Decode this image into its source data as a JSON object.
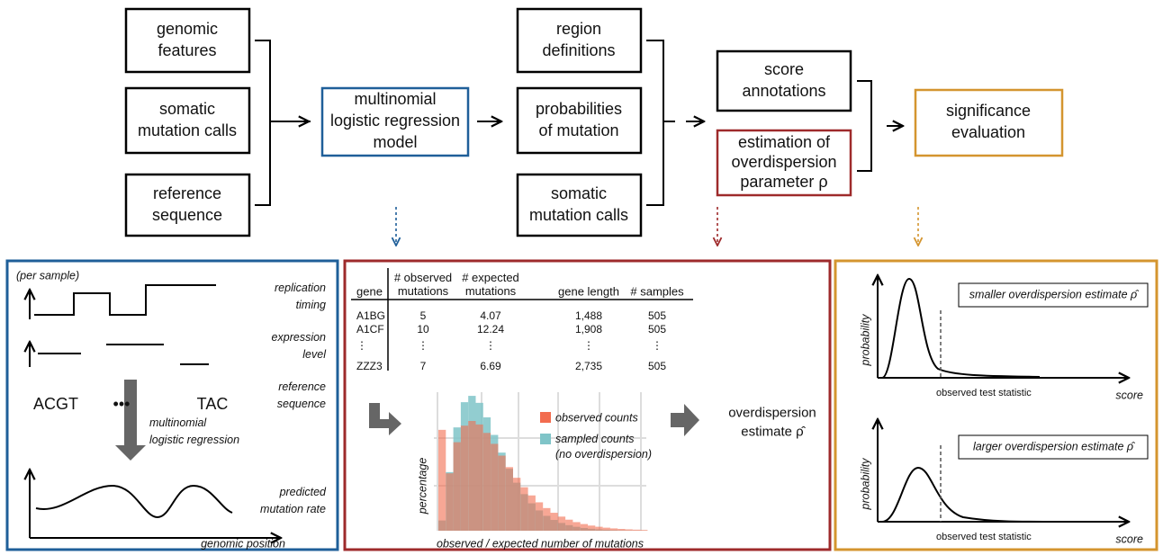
{
  "flow": {
    "inputs": [
      [
        "genomic",
        "features"
      ],
      [
        "somatic",
        "mutation calls"
      ],
      [
        "reference",
        "sequence"
      ]
    ],
    "model": [
      "multinomial",
      "logistic regression",
      "model"
    ],
    "outputs": [
      [
        "region",
        "definitions"
      ],
      [
        "probabilities",
        "of  mutation"
      ],
      [
        "somatic",
        "mutation calls"
      ]
    ],
    "scoring": [
      [
        "score",
        "annotations"
      ],
      [
        "estimation of",
        "overdispersion",
        "parameter ρ"
      ]
    ],
    "result": [
      "significance",
      "evaluation"
    ]
  },
  "model_panel": {
    "per_sample": "(per sample)",
    "tracks": [
      [
        "replication",
        "timing"
      ],
      [
        "expression",
        "level"
      ],
      [
        "reference",
        "sequence"
      ],
      [
        "predicted",
        "mutation rate"
      ]
    ],
    "sequence": [
      "ACGT",
      "•••",
      "TAC"
    ],
    "method": [
      "multinomial",
      "logistic regression"
    ],
    "x_label": "genomic position"
  },
  "overdispersion_panel": {
    "table": {
      "header": [
        [
          "gene"
        ],
        [
          "# observed",
          "mutations"
        ],
        [
          "# expected",
          "mutations"
        ],
        [
          "gene length"
        ],
        [
          "# samples"
        ]
      ],
      "rows": [
        [
          "A1BG",
          "5",
          "4.07",
          "1,488",
          "505"
        ],
        [
          "A1CF",
          "10",
          "12.24",
          "1,908",
          "505"
        ],
        [
          "⋮",
          "⋮",
          "⋮",
          "⋮",
          "⋮"
        ],
        [
          "ZZZ3",
          "7",
          "6.69",
          "2,735",
          "505"
        ]
      ]
    },
    "legend": [
      [
        "observed counts"
      ],
      [
        "sampled counts",
        "(no overdispersion)"
      ]
    ],
    "y_label": "percentage",
    "x_label": "observed / expected number of mutations",
    "estimate": [
      "overdispersion",
      "estimate ρ̂"
    ]
  },
  "significance_panel": {
    "plots": [
      {
        "legend": "smaller overdispersion estimate ρ̂",
        "y_label": "probability",
        "marker": "observed test statistic",
        "x_label": "score"
      },
      {
        "legend": "larger overdispersion estimate ρ̂",
        "y_label": "probability",
        "marker": "observed test statistic",
        "x_label": "score"
      }
    ]
  }
}
